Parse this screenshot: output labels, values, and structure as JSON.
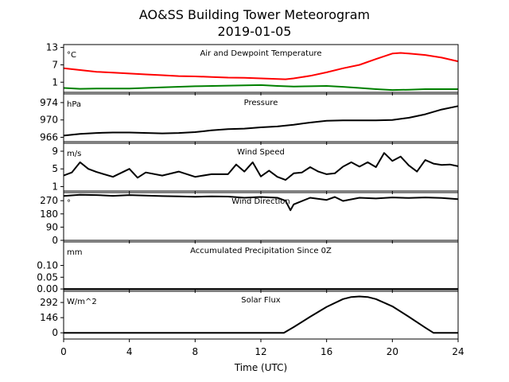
{
  "chart_data": {
    "type": "line",
    "title": "AO&SS Building Tower Meteorogram",
    "subtitle": "2019-01-05",
    "xlabel": "Time (UTC)",
    "xticks": [
      0,
      4,
      8,
      12,
      16,
      20,
      24
    ],
    "xlim": [
      0,
      24
    ],
    "panels": [
      {
        "title": "Air and Dewpoint Temperature",
        "unit": "°C",
        "ylim": [
          -2.5,
          14
        ],
        "yticks": [
          1,
          7,
          13
        ],
        "series": [
          {
            "color": "#ff0000",
            "points": [
              [
                0,
                5.8
              ],
              [
                1,
                5.2
              ],
              [
                2,
                4.6
              ],
              [
                3,
                4.3
              ],
              [
                4,
                4.0
              ],
              [
                5,
                3.7
              ],
              [
                6,
                3.4
              ],
              [
                7,
                3.1
              ],
              [
                8,
                3.0
              ],
              [
                9,
                2.8
              ],
              [
                10,
                2.6
              ],
              [
                11,
                2.5
              ],
              [
                12,
                2.3
              ],
              [
                13,
                2.1
              ],
              [
                13.5,
                2.0
              ],
              [
                14,
                2.3
              ],
              [
                15,
                3.2
              ],
              [
                16,
                4.4
              ],
              [
                17,
                5.8
              ],
              [
                18,
                7.0
              ],
              [
                19,
                9.0
              ],
              [
                20,
                10.9
              ],
              [
                20.5,
                11.1
              ],
              [
                21,
                10.9
              ],
              [
                22,
                10.4
              ],
              [
                23,
                9.5
              ],
              [
                24,
                8.2
              ]
            ]
          },
          {
            "color": "#008000",
            "points": [
              [
                0,
                -1.0
              ],
              [
                1,
                -1.3
              ],
              [
                2,
                -1.2
              ],
              [
                4,
                -1.2
              ],
              [
                5,
                -1.0
              ],
              [
                6,
                -0.8
              ],
              [
                8,
                -0.4
              ],
              [
                10,
                -0.2
              ],
              [
                12,
                0.0
              ],
              [
                13,
                -0.3
              ],
              [
                14,
                -0.5
              ],
              [
                15,
                -0.4
              ],
              [
                16,
                -0.3
              ],
              [
                17,
                -0.6
              ],
              [
                18,
                -1.0
              ],
              [
                19,
                -1.4
              ],
              [
                20,
                -1.7
              ],
              [
                21,
                -1.6
              ],
              [
                22,
                -1.4
              ],
              [
                24,
                -1.4
              ]
            ]
          }
        ]
      },
      {
        "title": "Pressure",
        "unit": "hPa",
        "ylim": [
          965,
          976
        ],
        "yticks": [
          966,
          970,
          974
        ],
        "series": [
          {
            "color": "#000000",
            "points": [
              [
                0,
                966.4
              ],
              [
                1,
                966.8
              ],
              [
                2,
                967.0
              ],
              [
                3,
                967.1
              ],
              [
                4,
                967.1
              ],
              [
                6,
                966.9
              ],
              [
                7,
                967.0
              ],
              [
                8,
                967.2
              ],
              [
                9,
                967.6
              ],
              [
                10,
                967.9
              ],
              [
                11,
                968.0
              ],
              [
                12,
                968.3
              ],
              [
                13,
                968.5
              ],
              [
                14,
                968.9
              ],
              [
                15,
                969.4
              ],
              [
                16,
                969.8
              ],
              [
                17,
                969.9
              ],
              [
                18,
                969.9
              ],
              [
                19,
                969.9
              ],
              [
                20,
                970.0
              ],
              [
                21,
                970.5
              ],
              [
                22,
                971.3
              ],
              [
                23,
                972.4
              ],
              [
                24,
                973.2
              ]
            ]
          }
        ]
      },
      {
        "title": "Wind Speed",
        "unit": "m/s",
        "ylim": [
          0,
          10.8
        ],
        "yticks": [
          1,
          5,
          9
        ],
        "series": [
          {
            "color": "#000000",
            "points": [
              [
                0,
                3.5
              ],
              [
                0.5,
                4.2
              ],
              [
                1,
                6.5
              ],
              [
                1.5,
                5.0
              ],
              [
                2,
                4.3
              ],
              [
                3,
                3.2
              ],
              [
                4,
                5.0
              ],
              [
                4.5,
                3.0
              ],
              [
                5,
                4.2
              ],
              [
                6,
                3.5
              ],
              [
                7,
                4.4
              ],
              [
                8,
                3.2
              ],
              [
                9,
                3.8
              ],
              [
                10,
                3.8
              ],
              [
                10.5,
                6.0
              ],
              [
                11,
                4.4
              ],
              [
                11.5,
                6.5
              ],
              [
                12,
                3.3
              ],
              [
                12.5,
                4.6
              ],
              [
                13,
                3.2
              ],
              [
                13.5,
                2.5
              ],
              [
                14,
                4.0
              ],
              [
                14.5,
                4.2
              ],
              [
                15,
                5.4
              ],
              [
                15.5,
                4.4
              ],
              [
                16,
                3.8
              ],
              [
                16.5,
                4.0
              ],
              [
                17,
                5.5
              ],
              [
                17.5,
                6.5
              ],
              [
                18,
                5.5
              ],
              [
                18.5,
                6.5
              ],
              [
                19,
                5.4
              ],
              [
                19.5,
                8.6
              ],
              [
                20,
                6.8
              ],
              [
                20.5,
                7.8
              ],
              [
                21,
                5.8
              ],
              [
                21.5,
                4.4
              ],
              [
                22,
                7.0
              ],
              [
                22.5,
                6.2
              ],
              [
                23,
                5.9
              ],
              [
                23.5,
                6.0
              ],
              [
                24,
                5.6
              ]
            ]
          }
        ]
      },
      {
        "title": "Wind Direction",
        "unit": "°",
        "ylim": [
          0,
          325
        ],
        "yticks": [
          0,
          90,
          180,
          270
        ],
        "series": [
          {
            "color": "#000000",
            "points": [
              [
                0,
                302
              ],
              [
                1,
                310
              ],
              [
                2,
                308
              ],
              [
                3,
                303
              ],
              [
                4,
                308
              ],
              [
                5,
                305
              ],
              [
                6,
                301
              ],
              [
                7,
                299
              ],
              [
                8,
                297
              ],
              [
                9,
                299
              ],
              [
                10,
                298
              ],
              [
                11,
                290
              ],
              [
                12,
                295
              ],
              [
                13,
                290
              ],
              [
                13.5,
                270
              ],
              [
                13.8,
                205
              ],
              [
                14,
                245
              ],
              [
                15,
                290
              ],
              [
                16,
                275
              ],
              [
                16.5,
                295
              ],
              [
                17,
                268
              ],
              [
                18,
                290
              ],
              [
                19,
                285
              ],
              [
                20,
                292
              ],
              [
                21,
                288
              ],
              [
                22,
                292
              ],
              [
                23,
                288
              ],
              [
                24,
                280
              ]
            ]
          }
        ]
      },
      {
        "title": "Accumulated Precipitation Since 0Z",
        "unit": "mm",
        "ylim": [
          -0.003,
          0.2
        ],
        "yticks": [
          0.0,
          0.05,
          0.1
        ],
        "ytick_labels": [
          "0.00",
          "0.05",
          "0.10"
        ],
        "series": [
          {
            "color": "#000000",
            "points": [
              [
                0,
                0.0
              ],
              [
                24,
                0.0
              ]
            ]
          }
        ]
      },
      {
        "title": "Solar Flux",
        "unit": "W/m^2",
        "ylim": [
          -60,
          400
        ],
        "yticks": [
          0,
          146,
          292
        ],
        "series": [
          {
            "color": "#000000",
            "points": [
              [
                0,
                0
              ],
              [
                13.4,
                0
              ],
              [
                14,
                55
              ],
              [
                15,
                155
              ],
              [
                16,
                250
              ],
              [
                17,
                325
              ],
              [
                17.5,
                345
              ],
              [
                18,
                350
              ],
              [
                18.5,
                345
              ],
              [
                19,
                325
              ],
              [
                20,
                255
              ],
              [
                21,
                155
              ],
              [
                22,
                50
              ],
              [
                22.5,
                0
              ],
              [
                24,
                0
              ]
            ]
          }
        ]
      }
    ]
  }
}
